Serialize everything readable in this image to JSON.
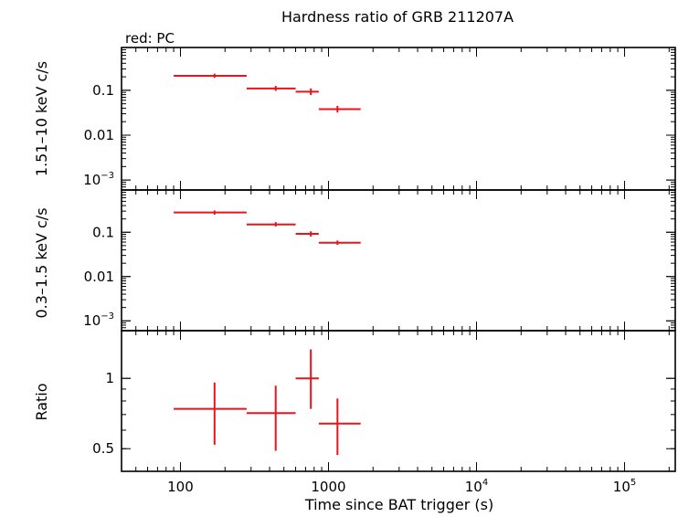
{
  "chart_data": {
    "type": "scatter",
    "title": "Hardness ratio of GRB 211207A",
    "subtitle": "red: PC",
    "xlabel": "Time since BAT trigger (s)",
    "x_scale": "log",
    "xlim": [
      40,
      220000
    ],
    "x_ticks": [
      {
        "value": 100,
        "label": "100"
      },
      {
        "value": 1000,
        "label": "1000"
      },
      {
        "value": 10000,
        "label": "10",
        "exp": "4"
      },
      {
        "value": 100000,
        "label": "10",
        "exp": "5"
      }
    ],
    "panels": [
      {
        "name": "hard",
        "ylabel": "1.51–10 keV c/s",
        "y_scale": "log",
        "ylim": [
          0.0006,
          0.9
        ],
        "y_ticks": [
          {
            "value": 0.1,
            "label": "0.1"
          },
          {
            "value": 0.01,
            "label": "0.01"
          },
          {
            "value": 0.001,
            "label": "10",
            "exp": "−3"
          }
        ],
        "points": [
          {
            "x": 170,
            "xlo": 90,
            "xhi": 280,
            "y": 0.21,
            "ylo": 0.19,
            "yhi": 0.235
          },
          {
            "x": 440,
            "xlo": 280,
            "xhi": 600,
            "y": 0.11,
            "ylo": 0.097,
            "yhi": 0.125
          },
          {
            "x": 760,
            "xlo": 600,
            "xhi": 860,
            "y": 0.093,
            "ylo": 0.078,
            "yhi": 0.11
          },
          {
            "x": 1150,
            "xlo": 860,
            "xhi": 1650,
            "y": 0.038,
            "ylo": 0.032,
            "yhi": 0.045
          }
        ]
      },
      {
        "name": "soft",
        "ylabel": "0.3–1.5 keV c/s",
        "y_scale": "log",
        "ylim": [
          0.0006,
          0.9
        ],
        "y_ticks": [
          {
            "value": 0.1,
            "label": "0.1"
          },
          {
            "value": 0.01,
            "label": "0.01"
          },
          {
            "value": 0.001,
            "label": "10",
            "exp": "−3"
          }
        ],
        "points": [
          {
            "x": 170,
            "xlo": 90,
            "xhi": 280,
            "y": 0.28,
            "ylo": 0.25,
            "yhi": 0.31
          },
          {
            "x": 440,
            "xlo": 280,
            "xhi": 600,
            "y": 0.15,
            "ylo": 0.135,
            "yhi": 0.17
          },
          {
            "x": 760,
            "xlo": 600,
            "xhi": 860,
            "y": 0.092,
            "ylo": 0.08,
            "yhi": 0.105
          },
          {
            "x": 1150,
            "xlo": 860,
            "xhi": 1650,
            "y": 0.058,
            "ylo": 0.052,
            "yhi": 0.065
          }
        ]
      },
      {
        "name": "ratio",
        "ylabel": "Ratio",
        "y_scale": "log",
        "ylim": [
          0.4,
          1.6
        ],
        "y_ticks": [
          {
            "value": 1,
            "label": "1"
          },
          {
            "value": 0.5,
            "label": "0.5"
          }
        ],
        "points": [
          {
            "x": 170,
            "xlo": 90,
            "xhi": 280,
            "y": 0.74,
            "ylo": 0.52,
            "yhi": 0.96
          },
          {
            "x": 440,
            "xlo": 280,
            "xhi": 600,
            "y": 0.71,
            "ylo": 0.49,
            "yhi": 0.93
          },
          {
            "x": 760,
            "xlo": 600,
            "xhi": 860,
            "y": 1.0,
            "ylo": 0.74,
            "yhi": 1.33
          },
          {
            "x": 1150,
            "xlo": 860,
            "xhi": 1650,
            "y": 0.64,
            "ylo": 0.47,
            "yhi": 0.82
          }
        ]
      }
    ],
    "series_color": "#e8141b",
    "grid": false
  }
}
